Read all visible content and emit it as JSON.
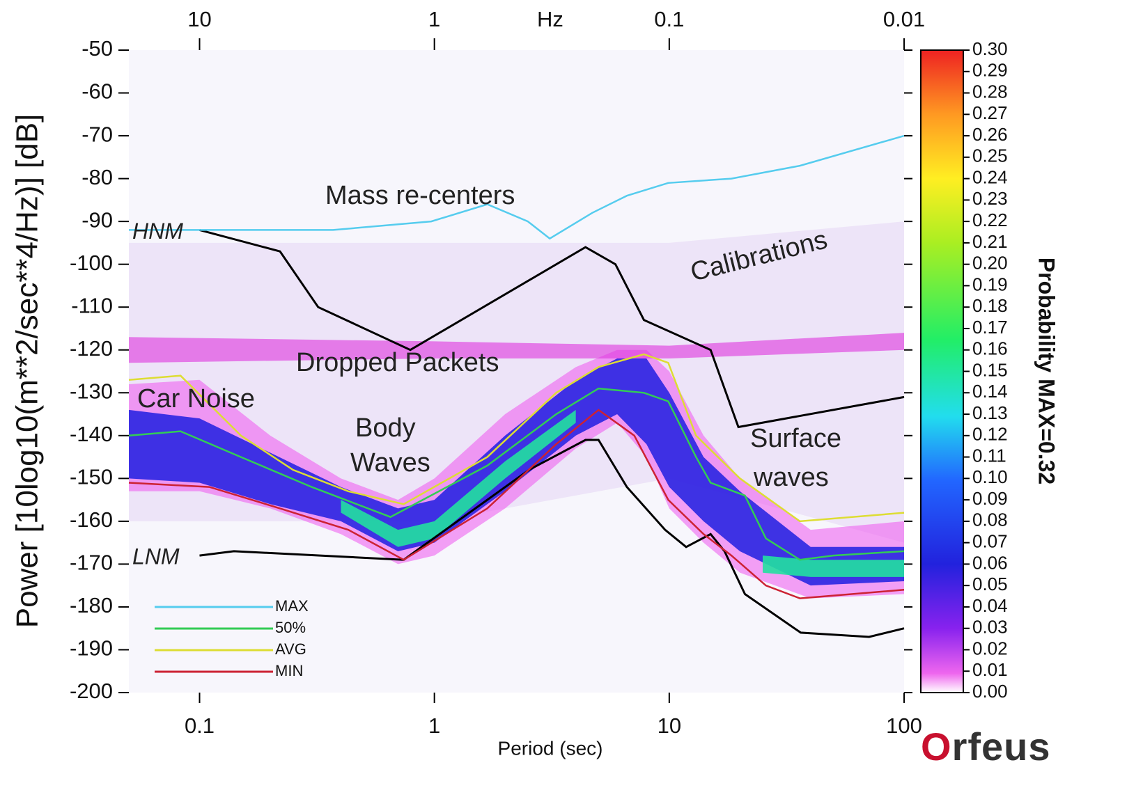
{
  "chart_data": {
    "type": "line",
    "y_label": "Power [10log10(m**2/sec**4/Hz)] [dB]",
    "x_label": "Period (sec)",
    "x2_label": "Hz",
    "colorbar_label": "Probability MAX=0.32",
    "logo": "Orfeus",
    "xlog": true,
    "xlim": [
      0.05,
      100
    ],
    "xticks": [
      0.1,
      1,
      10,
      100
    ],
    "x2lim": [
      20,
      0.01
    ],
    "x2ticks": [
      10,
      1,
      0.1,
      0.01
    ],
    "ylim": [
      -200,
      -50
    ],
    "yticks": [
      -50,
      -60,
      -70,
      -80,
      -90,
      -100,
      -110,
      -120,
      -130,
      -140,
      -150,
      -160,
      -170,
      -180,
      -190,
      -200
    ],
    "clim": [
      0,
      0.3
    ],
    "cticks": [
      {
        "value": 0.0,
        "label": "0.00"
      },
      {
        "value": 0.01,
        "label": "0.01"
      },
      {
        "value": 0.02,
        "label": "0.02"
      },
      {
        "value": 0.03,
        "label": "0.03"
      },
      {
        "value": 0.04,
        "label": "0.04"
      },
      {
        "value": 0.05,
        "label": "0.05"
      },
      {
        "value": 0.06,
        "label": "0.06"
      },
      {
        "value": 0.07,
        "label": "0.07"
      },
      {
        "value": 0.08,
        "label": "0.08"
      },
      {
        "value": 0.09,
        "label": "0.09"
      },
      {
        "value": 0.1,
        "label": "0.10"
      },
      {
        "value": 0.11,
        "label": "0.11"
      },
      {
        "value": 0.12,
        "label": "0.12"
      },
      {
        "value": 0.13,
        "label": "0.13"
      },
      {
        "value": 0.14,
        "label": "0.14"
      },
      {
        "value": 0.15,
        "label": "0.15"
      },
      {
        "value": 0.16,
        "label": "0.16"
      },
      {
        "value": 0.17,
        "label": "0.17"
      },
      {
        "value": 0.18,
        "label": "0.18"
      },
      {
        "value": 0.19,
        "label": "0.19"
      },
      {
        "value": 0.2,
        "label": "0.20"
      },
      {
        "value": 0.21,
        "label": "0.21"
      },
      {
        "value": 0.22,
        "label": "0.22"
      },
      {
        "value": 0.23,
        "label": "0.23"
      },
      {
        "value": 0.24,
        "label": "0.24"
      },
      {
        "value": 0.25,
        "label": "0.25"
      },
      {
        "value": 0.26,
        "label": "0.26"
      },
      {
        "value": 0.27,
        "label": "0.27"
      },
      {
        "value": 0.28,
        "label": "0.28"
      },
      {
        "value": 0.29,
        "label": "0.29"
      },
      {
        "value": 0.3,
        "label": "0.30"
      }
    ],
    "density": [
      {
        "color": "#e6d6f4",
        "opacity": 0.55,
        "x": [
          0.05,
          1,
          10,
          100
        ],
        "upper": [
          -95,
          -95,
          -95,
          -90
        ],
        "lower": [
          -160,
          -160,
          -150,
          -165
        ]
      },
      {
        "color": "#ee55ee",
        "opacity": 0.55,
        "x": [
          0.05,
          0.1,
          0.2,
          0.4,
          0.7,
          1,
          2,
          4,
          6,
          8,
          10,
          14,
          20,
          40,
          100
        ],
        "upper": [
          -128,
          -127,
          -140,
          -150,
          -155,
          -150,
          -135,
          -124,
          -120,
          -120,
          -125,
          -140,
          -150,
          -162,
          -160
        ],
        "lower": [
          -153,
          -153,
          -157,
          -163,
          -170,
          -168,
          -157,
          -143,
          -137,
          -145,
          -157,
          -165,
          -172,
          -178,
          -177
        ]
      },
      {
        "color": "#dd33dd",
        "opacity": 0.6,
        "x": [
          0.05,
          1,
          10,
          100
        ],
        "upper": [
          -117,
          -118,
          -119,
          -116
        ],
        "lower": [
          -123,
          -122,
          -122,
          -120
        ]
      },
      {
        "color": "#1e1ee0",
        "opacity": 0.85,
        "x": [
          0.05,
          0.1,
          0.2,
          0.4,
          0.7,
          1,
          2,
          4,
          6,
          8,
          10,
          14,
          20,
          40,
          100
        ],
        "upper": [
          -134,
          -136,
          -144,
          -152,
          -157,
          -155,
          -140,
          -127,
          -122,
          -122,
          -130,
          -145,
          -153,
          -166,
          -166
        ],
        "lower": [
          -150,
          -151,
          -156,
          -160,
          -167,
          -165,
          -153,
          -140,
          -135,
          -142,
          -152,
          -160,
          -167,
          -175,
          -174
        ]
      },
      {
        "color": "#22e0a0",
        "opacity": 0.9,
        "x": [
          0.4,
          0.7,
          1,
          2,
          4
        ],
        "upper": [
          -155,
          -162,
          -160,
          -146,
          -134
        ],
        "lower": [
          -158,
          -166,
          -164,
          -150,
          -137
        ]
      },
      {
        "color": "#22e0a0",
        "opacity": 0.9,
        "x": [
          25,
          40,
          100
        ],
        "upper": [
          -168,
          -169,
          -169
        ],
        "lower": [
          -172,
          -173,
          -173
        ]
      }
    ],
    "models": [
      {
        "name": "HNM",
        "x": [
          0.1,
          0.22,
          0.32,
          0.79,
          4.4,
          5.9,
          7.8,
          15,
          19.7,
          100
        ],
        "values": [
          -92,
          -97,
          -110,
          -120,
          -96,
          -100,
          -113,
          -120,
          -138,
          -131
        ]
      },
      {
        "name": "LNM",
        "x": [
          0.1,
          0.14,
          0.74,
          2.53,
          4.4,
          5,
          6.6,
          9.6,
          11.8,
          15,
          17.2,
          21,
          36.3,
          71,
          100
        ],
        "values": [
          -168,
          -167,
          -169,
          -148,
          -141,
          -141,
          -152,
          -162,
          -166,
          -163,
          -167,
          -177,
          -186,
          -187,
          -185
        ]
      }
    ],
    "model_color": "#000000",
    "series": [
      {
        "name": "MAX",
        "color": "#55ccee",
        "x": [
          0.05,
          0.37,
          0.97,
          1.68,
          2.5,
          3.1,
          4.7,
          6.6,
          9.9,
          18.4,
          36,
          100
        ],
        "values": [
          -92,
          -92,
          -90,
          -86,
          -90,
          -94,
          -88,
          -84,
          -81,
          -80,
          -77,
          -70
        ]
      },
      {
        "name": "50%",
        "color": "#33cc55",
        "x": [
          0.05,
          0.083,
          0.15,
          0.3,
          0.65,
          1.68,
          3.3,
          5,
          7.8,
          9.9,
          13,
          15,
          21,
          25.8,
          36,
          50,
          100
        ],
        "values": [
          -140,
          -139,
          -145,
          -152,
          -159,
          -147,
          -135,
          -129,
          -130,
          -132,
          -145,
          -151,
          -154,
          -164,
          -169,
          -168,
          -167
        ]
      },
      {
        "name": "AVG",
        "color": "#dddd33",
        "x": [
          0.05,
          0.083,
          0.15,
          0.25,
          0.43,
          0.74,
          1.68,
          3.3,
          5,
          7.8,
          9.9,
          13,
          20,
          36,
          100
        ],
        "values": [
          -127,
          -126,
          -140,
          -148,
          -153,
          -156,
          -145,
          -130,
          -124,
          -121,
          -123,
          -140,
          -150,
          -160,
          -158
        ]
      },
      {
        "name": "MIN",
        "color": "#cc2233",
        "x": [
          0.05,
          0.11,
          0.22,
          0.43,
          0.74,
          1.68,
          3.3,
          5,
          7.1,
          9.9,
          14,
          18.4,
          25.8,
          36,
          100
        ],
        "values": [
          -151,
          -152,
          -157,
          -162,
          -169,
          -157,
          -142,
          -134,
          -140,
          -155,
          -163,
          -168,
          -175,
          -178,
          -176
        ]
      }
    ],
    "annotations": [
      "Mass re-centers",
      "Calibrations",
      "Dropped Packets",
      "Car Noise",
      "Body",
      "Waves",
      "Surface",
      "waves"
    ]
  }
}
